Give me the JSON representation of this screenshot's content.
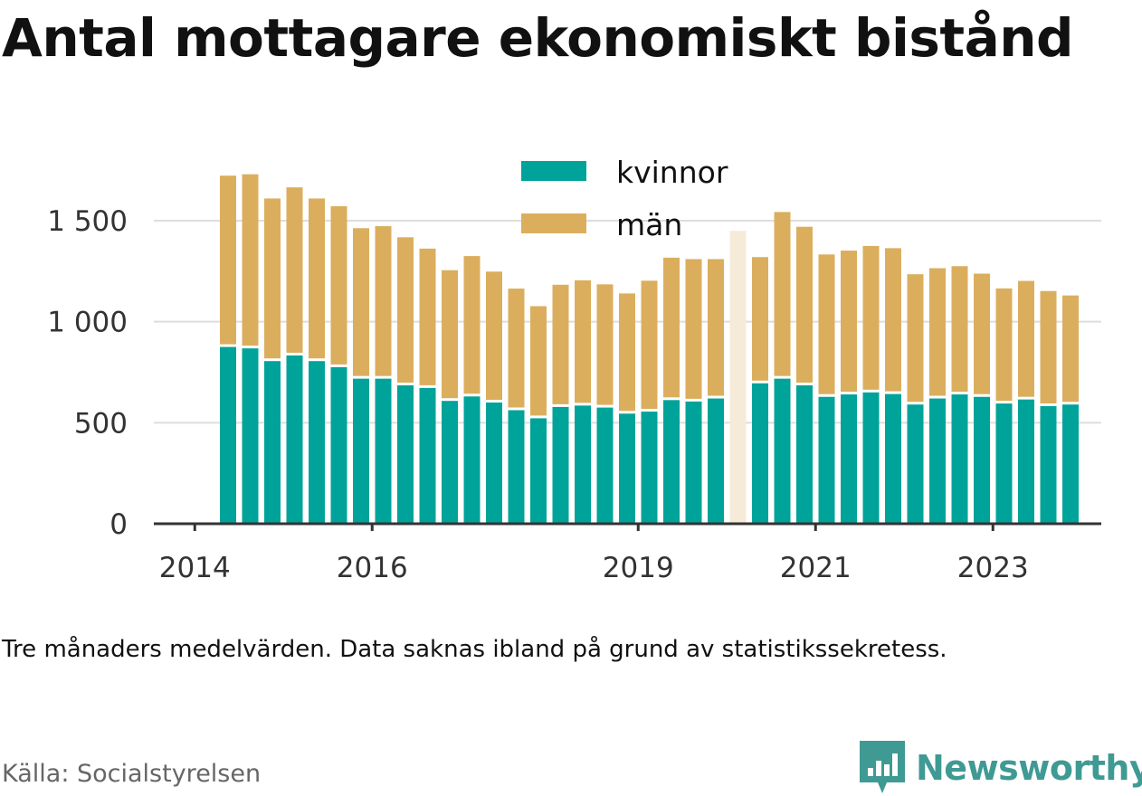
{
  "title": "Antal mottagare ekonomiskt bistånd",
  "note": "Tre månaders medelvärden. Data saknas ibland på grund av statistikssekretess.",
  "source": "Källa: Socialstyrelsen",
  "brand": "Newsworthy",
  "colors": {
    "kvinnor": "#00a399",
    "man": "#dbae5e",
    "gap": "#f6ebd9",
    "grid": "#dddddd",
    "axis": "#333333"
  },
  "chart_data": {
    "type": "bar",
    "stacked": true,
    "ylim": [
      0,
      1750
    ],
    "yticks": [
      0,
      500,
      1000,
      1500
    ],
    "ytick_labels": [
      "0",
      "500",
      "1 000",
      "1 500"
    ],
    "xticks": [
      "2014",
      "2016",
      "2019",
      "2021",
      "2023"
    ],
    "legend": [
      "kvinnor",
      "män"
    ],
    "legend_position": "top-center",
    "grid": true,
    "series": [
      {
        "name": "kvinnor",
        "values": [
          875,
          868,
          805,
          833,
          805,
          775,
          718,
          718,
          685,
          672,
          608,
          630,
          600,
          562,
          522,
          578,
          585,
          575,
          545,
          555,
          612,
          605,
          620,
          695,
          718,
          685,
          628,
          640,
          650,
          642,
          590,
          620,
          640,
          628,
          595,
          615,
          582,
          590
        ]
      },
      {
        "name": "män",
        "values": [
          848,
          862,
          805,
          832,
          805,
          797,
          745,
          755,
          733,
          690,
          647,
          695,
          648,
          602,
          555,
          605,
          620,
          610,
          595,
          648,
          705,
          705,
          690,
          625,
          825,
          785,
          705,
          712,
          725,
          722,
          645,
          645,
          635,
          610,
          570,
          587,
          570,
          540
        ]
      }
    ],
    "missing": [
      {
        "after_index": 22,
        "value": 1450
      }
    ]
  }
}
